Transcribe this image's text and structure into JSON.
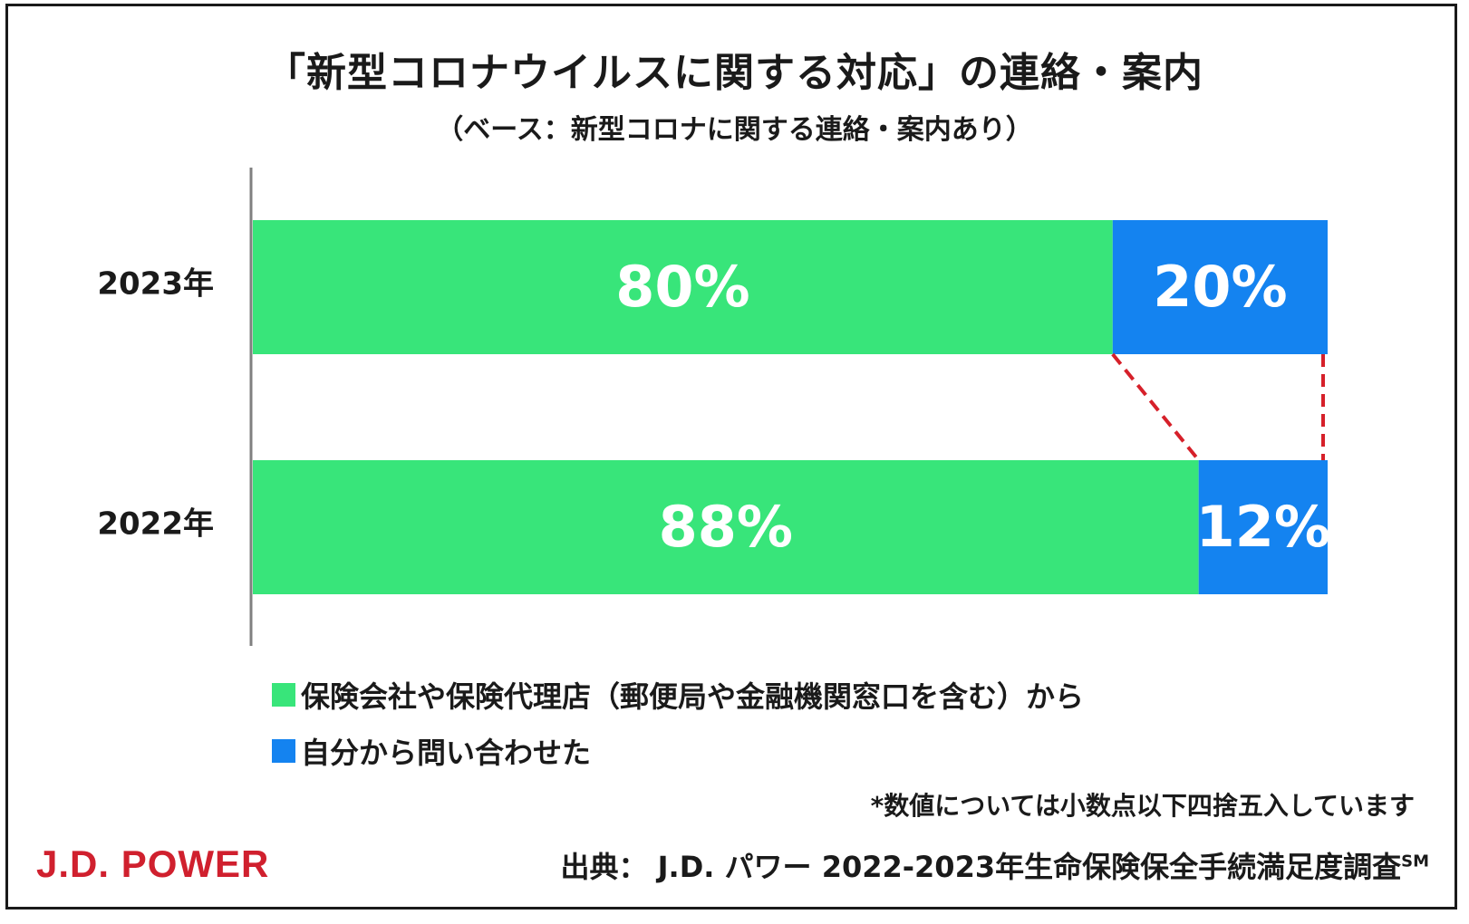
{
  "chart_data": {
    "type": "bar",
    "orientation": "horizontal",
    "stacked": true,
    "title": "「新型コロナウイルスに関する対応」の連絡・案内",
    "subtitle": "（ベース：新型コロナに関する連絡・案内あり）",
    "categories": [
      "2023年",
      "2022年"
    ],
    "series": [
      {
        "name": "保険会社や保険代理店（郵便局や金融機関窓口を含む）から",
        "color": "#38e57a",
        "values": [
          80,
          88
        ],
        "labels": [
          "80%",
          "88%"
        ]
      },
      {
        "name": "自分から問い合わせた",
        "color": "#1483f0",
        "values": [
          20,
          12
        ],
        "labels": [
          "20%",
          "12%"
        ]
      }
    ],
    "xlim": [
      0,
      100
    ],
    "unit": "%",
    "connector_color": "#d6202a"
  },
  "note": "*数値については小数点以下四捨五入しています",
  "logo_text": "J.D. POWER",
  "source": {
    "text": "出典：  J.D. パワー 2022-2023年生命保険保全手続満足度調査",
    "mark": "SM"
  },
  "colors": {
    "brand_red": "#d0202e"
  }
}
